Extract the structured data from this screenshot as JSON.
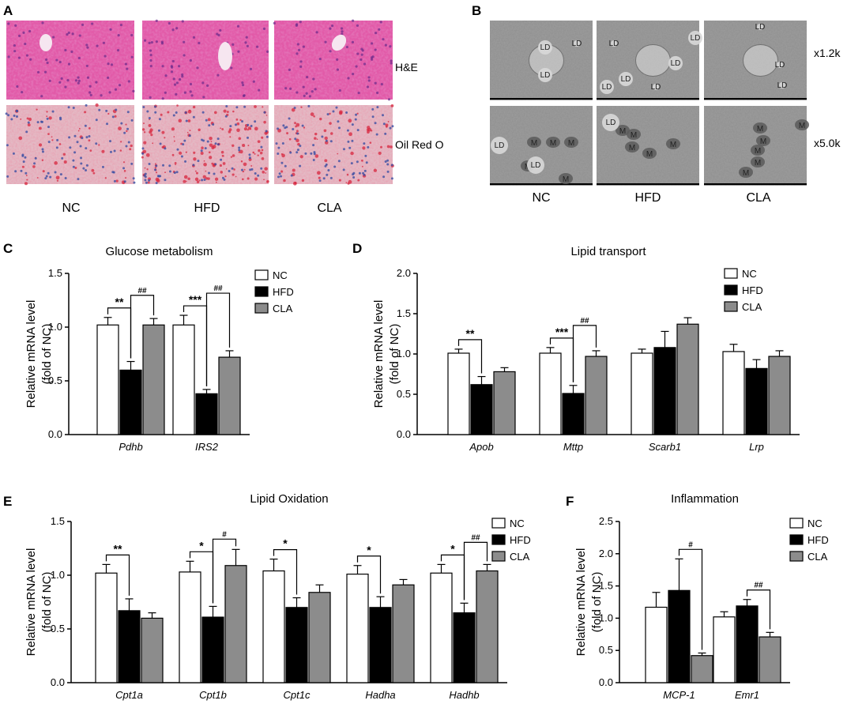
{
  "figure": {
    "panels": {
      "A": "A",
      "B": "B",
      "C": "C",
      "D": "D",
      "E": "E",
      "F": "F"
    },
    "micro_A": {
      "groups": [
        "NC",
        "HFD",
        "CLA"
      ],
      "stains": [
        "H&E",
        "Oil Red O"
      ],
      "colors": {
        "he_bg": "#e25aa8",
        "he_cell": "#c9449a",
        "he_nuc": "#6a2a8a",
        "he_vessel": "#f6e6f0",
        "oro_bg": "#e4b9c4",
        "oro_nuc": "#3b4fa3",
        "oro_lipid": "#d7263d"
      }
    },
    "micro_B": {
      "groups": [
        "NC",
        "HFD",
        "CLA"
      ],
      "magnifications": [
        "x1.2k",
        "x5.0k"
      ],
      "labels": {
        "ld": "LD",
        "m": "M"
      },
      "colors": {
        "em_bg": "#9a9a9a",
        "em_dark": "#5a5a5a",
        "em_light": "#d8d8d8"
      }
    }
  },
  "legend": [
    "NC",
    "HFD",
    "CLA"
  ],
  "colors": {
    "NC": "#ffffff",
    "HFD": "#000000",
    "CLA": "#8c8c8c"
  },
  "chart_data": [
    {
      "panel": "C",
      "type": "bar",
      "title": "Glucose metabolism",
      "ylabel": [
        "Relative mRNA level",
        "(fold of NC)"
      ],
      "ylim": [
        0,
        1.5
      ],
      "yticks": [
        "0.0",
        "0.5",
        "1.0",
        "1.5"
      ],
      "categories": [
        "Pdhb",
        "IRS2"
      ],
      "series": [
        {
          "name": "NC",
          "values": [
            1.02,
            1.02
          ],
          "errors": [
            0.07,
            0.09
          ]
        },
        {
          "name": "HFD",
          "values": [
            0.6,
            0.38
          ],
          "errors": [
            0.08,
            0.04
          ]
        },
        {
          "name": "CLA",
          "values": [
            1.02,
            0.72
          ],
          "errors": [
            0.06,
            0.06
          ]
        }
      ],
      "annotations": [
        {
          "category": 0,
          "from": 0,
          "to": 1,
          "text": "**"
        },
        {
          "category": 0,
          "from": 1,
          "to": 2,
          "text": "##"
        },
        {
          "category": 1,
          "from": 0,
          "to": 1,
          "text": "***"
        },
        {
          "category": 1,
          "from": 1,
          "to": 2,
          "text": "##"
        }
      ],
      "legend_position": "top-right"
    },
    {
      "panel": "D",
      "type": "bar",
      "title": "Lipid transport",
      "ylabel": [
        "Relative mRNA level",
        "(fold of NC)"
      ],
      "ylim": [
        0,
        2.0
      ],
      "yticks": [
        "0.0",
        "0.5",
        "1.0",
        "1.5",
        "2.0"
      ],
      "categories": [
        "Apob",
        "Mttp",
        "Scarb1",
        "Lrp"
      ],
      "series": [
        {
          "name": "NC",
          "values": [
            1.01,
            1.01,
            1.01,
            1.03
          ],
          "errors": [
            0.05,
            0.07,
            0.05,
            0.09
          ]
        },
        {
          "name": "HFD",
          "values": [
            0.62,
            0.51,
            1.08,
            0.82
          ],
          "errors": [
            0.1,
            0.1,
            0.2,
            0.11
          ]
        },
        {
          "name": "CLA",
          "values": [
            0.78,
            0.97,
            1.37,
            0.97
          ],
          "errors": [
            0.05,
            0.07,
            0.08,
            0.07
          ]
        }
      ],
      "annotations": [
        {
          "category": 0,
          "from": 0,
          "to": 1,
          "text": "**"
        },
        {
          "category": 1,
          "from": 0,
          "to": 1,
          "text": "***"
        },
        {
          "category": 1,
          "from": 1,
          "to": 2,
          "text": "##"
        }
      ],
      "legend_position": "top-right"
    },
    {
      "panel": "E",
      "type": "bar",
      "title": "Lipid Oxidation",
      "ylabel": [
        "Relative mRNA level",
        "(fold of NC)"
      ],
      "ylim": [
        0,
        1.5
      ],
      "yticks": [
        "0.0",
        "0.5",
        "1.0",
        "1.5"
      ],
      "categories": [
        "Cpt1a",
        "Cpt1b",
        "Cpt1c",
        "Hadha",
        "Hadhb"
      ],
      "series": [
        {
          "name": "NC",
          "values": [
            1.02,
            1.03,
            1.04,
            1.01,
            1.02
          ],
          "errors": [
            0.08,
            0.1,
            0.11,
            0.08,
            0.08
          ]
        },
        {
          "name": "HFD",
          "values": [
            0.67,
            0.61,
            0.7,
            0.7,
            0.65
          ],
          "errors": [
            0.11,
            0.1,
            0.09,
            0.1,
            0.09
          ]
        },
        {
          "name": "CLA",
          "values": [
            0.6,
            1.09,
            0.84,
            0.91,
            1.04
          ],
          "errors": [
            0.05,
            0.15,
            0.07,
            0.05,
            0.06
          ]
        }
      ],
      "annotations": [
        {
          "category": 0,
          "from": 0,
          "to": 1,
          "text": "**"
        },
        {
          "category": 1,
          "from": 0,
          "to": 1,
          "text": "*"
        },
        {
          "category": 1,
          "from": 1,
          "to": 2,
          "text": "#"
        },
        {
          "category": 2,
          "from": 0,
          "to": 1,
          "text": "*"
        },
        {
          "category": 3,
          "from": 0,
          "to": 1,
          "text": "*"
        },
        {
          "category": 4,
          "from": 0,
          "to": 1,
          "text": "*"
        },
        {
          "category": 4,
          "from": 1,
          "to": 2,
          "text": "##"
        }
      ],
      "legend_position": "top-right"
    },
    {
      "panel": "F",
      "type": "bar",
      "title": "Inflammation",
      "ylabel": [
        "Relative mRNA level",
        "(fold of NC)"
      ],
      "ylim": [
        0,
        2.5
      ],
      "yticks": [
        "0.0",
        "0.5",
        "1.0",
        "1.5",
        "2.0",
        "2.5"
      ],
      "categories": [
        "MCP-1",
        "Emr1"
      ],
      "series": [
        {
          "name": "NC",
          "values": [
            1.17,
            1.02
          ],
          "errors": [
            0.23,
            0.08
          ]
        },
        {
          "name": "HFD",
          "values": [
            1.43,
            1.19
          ],
          "errors": [
            0.49,
            0.1
          ]
        },
        {
          "name": "CLA",
          "values": [
            0.42,
            0.71
          ],
          "errors": [
            0.04,
            0.07
          ]
        }
      ],
      "annotations": [
        {
          "category": 0,
          "from": 1,
          "to": 2,
          "text": "#"
        },
        {
          "category": 1,
          "from": 1,
          "to": 2,
          "text": "##"
        }
      ],
      "legend_position": "top-right"
    }
  ]
}
